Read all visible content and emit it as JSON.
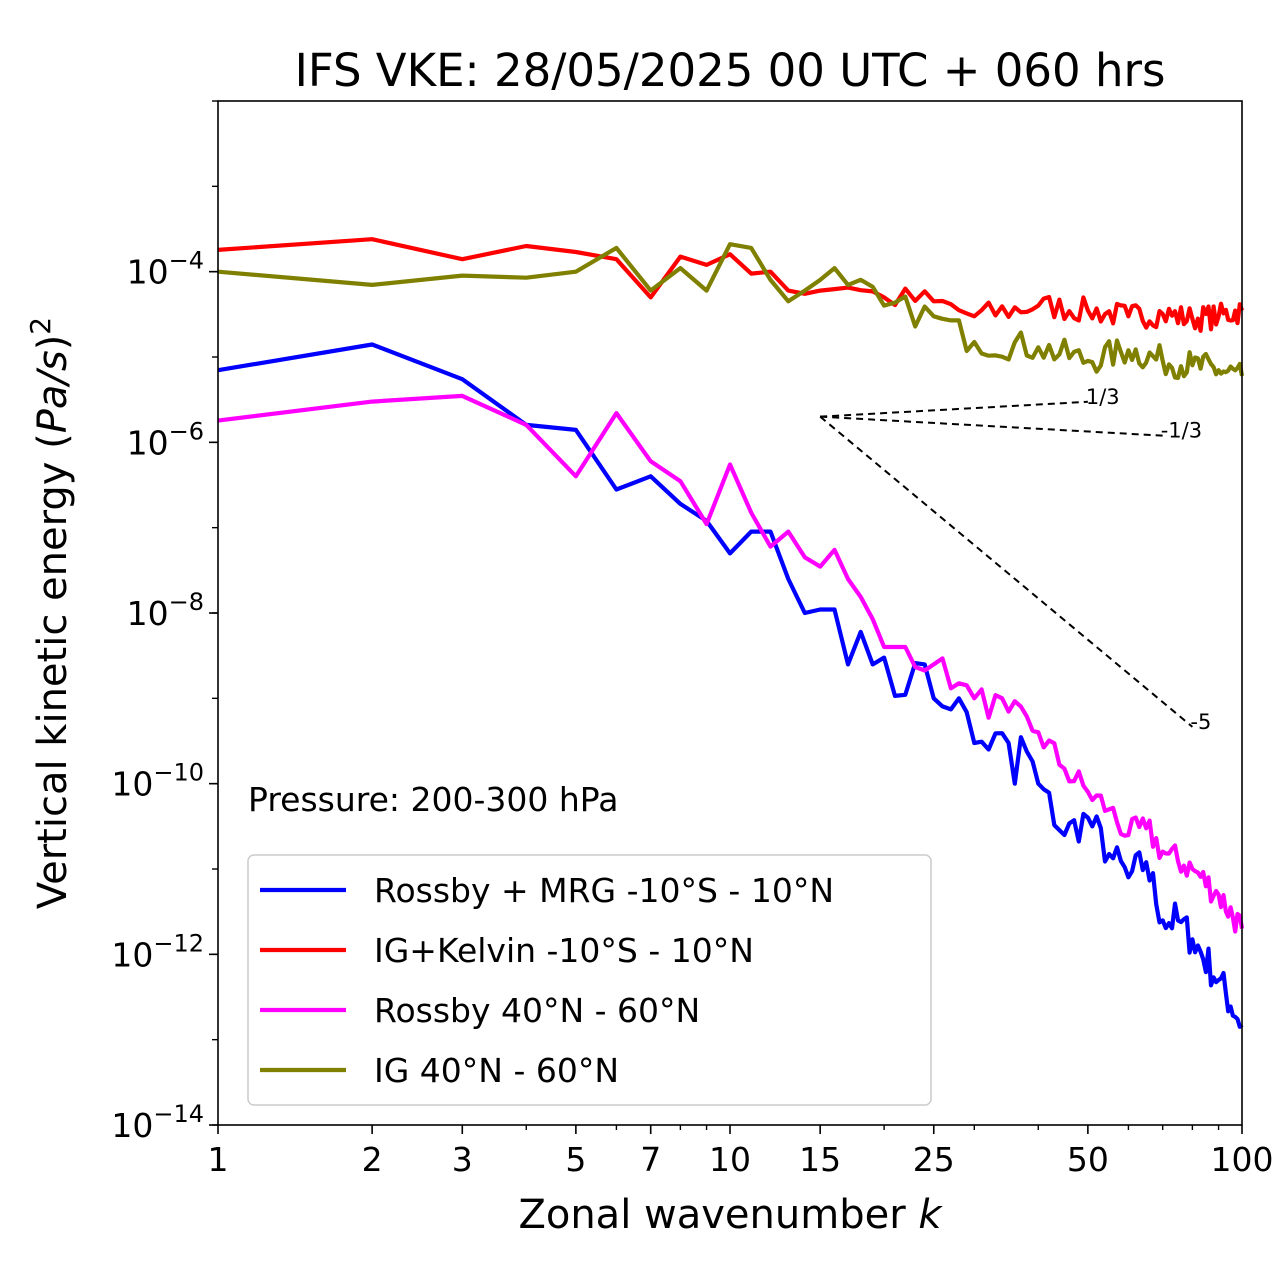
{
  "chart_data": {
    "type": "line",
    "title": "IFS VKE: 28/05/2025 00 UTC + 060 hrs",
    "xlabel": "Zonal wavenumber k",
    "xlabel_main": "Zonal wavenumber ",
    "xlabel_var": "k",
    "ylabel": "Vertical kinetic energy (Pa/s)^2",
    "ylabel_main": "Vertical kinetic energy (",
    "ylabel_var": "Pa/s",
    "ylabel_close": ")",
    "ylabel_exp": "2",
    "x_scale": "log",
    "y_scale": "log",
    "xlim": [
      1,
      100
    ],
    "ylim": [
      1e-14,
      0.01
    ],
    "x_ticks": [
      1,
      2,
      3,
      5,
      7,
      10,
      15,
      25,
      50,
      100
    ],
    "x_tick_labels": [
      "1",
      "2",
      "3",
      "5",
      "7",
      "10",
      "15",
      "25",
      "50",
      "100"
    ],
    "y_ticks": [
      -14,
      -12,
      -10,
      -8,
      -6,
      -4
    ],
    "y_tick_labels": [
      {
        "base": "10",
        "exp": "−14"
      },
      {
        "base": "10",
        "exp": "−12"
      },
      {
        "base": "10",
        "exp": "−10"
      },
      {
        "base": "10",
        "exp": "−8"
      },
      {
        "base": "10",
        "exp": "−6"
      },
      {
        "base": "10",
        "exp": "−4"
      }
    ],
    "annotation": "Pressure: 200-300 hPa",
    "legend_position": "lower-left",
    "grid": false,
    "reference_lines": [
      {
        "label": "1/3",
        "slope": 0.3333,
        "x0": 15,
        "y0": 2e-06,
        "x1": 50,
        "color": "#000000"
      },
      {
        "label": "-1/3",
        "slope": -0.3333,
        "x0": 15,
        "y0": 2e-06,
        "x1": 70,
        "color": "#000000"
      },
      {
        "label": "-5",
        "slope": -5,
        "x0": 15,
        "y0": 2e-06,
        "x1": 80,
        "color": "#000000"
      }
    ],
    "series": [
      {
        "name": "Rossby + MRG -10°S - 10°N",
        "color": "#0000ff",
        "anchors": [
          [
            1,
            7e-06
          ],
          [
            2,
            1.4e-05
          ],
          [
            3,
            5.5e-06
          ],
          [
            4,
            1.6e-06
          ],
          [
            5,
            1.4e-06
          ],
          [
            6,
            2.8e-07
          ],
          [
            7,
            4e-07
          ],
          [
            8,
            1.9e-07
          ],
          [
            9,
            1.2e-07
          ],
          [
            10,
            5e-08
          ],
          [
            11,
            9e-08
          ],
          [
            12,
            9e-08
          ],
          [
            13,
            2.5e-08
          ],
          [
            14,
            1e-08
          ],
          [
            15,
            1.1e-08
          ],
          [
            16,
            1.1e-08
          ],
          [
            17,
            2.5e-09
          ],
          [
            18,
            6e-09
          ],
          [
            19,
            2.5e-09
          ],
          [
            20,
            3e-09
          ],
          [
            22,
            1.1e-09
          ],
          [
            24,
            2.5e-09
          ],
          [
            25,
            1e-09
          ],
          [
            28,
            1e-09
          ],
          [
            30,
            3e-10
          ],
          [
            35,
            3e-10
          ],
          [
            36,
            1e-10
          ],
          [
            37,
            3.5e-10
          ],
          [
            40,
            1e-10
          ],
          [
            45,
            2.5e-11
          ],
          [
            50,
            4e-11
          ],
          [
            55,
            1.5e-11
          ],
          [
            60,
            8e-12
          ],
          [
            65,
            1.2e-11
          ],
          [
            70,
            2.5e-12
          ],
          [
            75,
            2.5e-12
          ],
          [
            80,
            1.5e-12
          ],
          [
            90,
            5e-13
          ],
          [
            100,
            1.5e-13
          ]
        ]
      },
      {
        "name": "IG+Kelvin -10°S - 10°N",
        "color": "#ff0000",
        "anchors": [
          [
            1,
            0.00018
          ],
          [
            2,
            0.00024
          ],
          [
            3,
            0.00014
          ],
          [
            4,
            0.0002
          ],
          [
            5,
            0.00017
          ],
          [
            6,
            0.00014
          ],
          [
            7,
            5e-05
          ],
          [
            8,
            0.00015
          ],
          [
            9,
            0.00012
          ],
          [
            10,
            0.00016
          ],
          [
            11,
            9.5e-05
          ],
          [
            12,
            0.0001
          ],
          [
            13,
            6e-05
          ],
          [
            14,
            5.5e-05
          ],
          [
            15,
            6e-05
          ],
          [
            17,
            6.5e-05
          ],
          [
            20,
            5e-05
          ],
          [
            25,
            4.5e-05
          ],
          [
            30,
            3e-05
          ],
          [
            40,
            4e-05
          ],
          [
            50,
            3.5e-05
          ],
          [
            60,
            3e-05
          ],
          [
            70,
            3.2e-05
          ],
          [
            80,
            2.8e-05
          ],
          [
            90,
            3e-05
          ],
          [
            100,
            3.5e-05
          ]
        ]
      },
      {
        "name": "Rossby 40°N - 60°N",
        "color": "#ff00ff",
        "anchors": [
          [
            1,
            1.8e-06
          ],
          [
            2,
            3e-06
          ],
          [
            3,
            3.5e-06
          ],
          [
            4,
            1.6e-06
          ],
          [
            5,
            4e-07
          ],
          [
            6,
            2.2e-06
          ],
          [
            7,
            6e-07
          ],
          [
            8,
            3.5e-07
          ],
          [
            9,
            1.1e-07
          ],
          [
            10,
            5.5e-07
          ],
          [
            11,
            1.5e-07
          ],
          [
            12,
            6e-08
          ],
          [
            13,
            9e-08
          ],
          [
            14,
            4.5e-08
          ],
          [
            15,
            3.5e-08
          ],
          [
            16,
            5.5e-08
          ],
          [
            17,
            2.5e-08
          ],
          [
            20,
            4e-09
          ],
          [
            22,
            4e-09
          ],
          [
            25,
            2.5e-09
          ],
          [
            28,
            1.5e-09
          ],
          [
            30,
            1e-09
          ],
          [
            35,
            7e-10
          ],
          [
            40,
            4e-10
          ],
          [
            45,
            1.5e-10
          ],
          [
            50,
            8e-11
          ],
          [
            55,
            5e-11
          ],
          [
            60,
            2.5e-11
          ],
          [
            65,
            3e-11
          ],
          [
            70,
            1.6e-11
          ],
          [
            80,
            1e-11
          ],
          [
            90,
            5e-12
          ],
          [
            100,
            2e-12
          ]
        ]
      },
      {
        "name": "IG 40°N - 60°N",
        "color": "#808000",
        "anchors": [
          [
            1,
            0.0001
          ],
          [
            2,
            7e-05
          ],
          [
            3,
            9e-05
          ],
          [
            4,
            8.5e-05
          ],
          [
            5,
            0.0001
          ],
          [
            6,
            0.00019
          ],
          [
            7,
            6e-05
          ],
          [
            8,
            0.00011
          ],
          [
            9,
            6e-05
          ],
          [
            10,
            0.00021
          ],
          [
            11,
            0.00019
          ],
          [
            12,
            8e-05
          ],
          [
            13,
            4.5e-05
          ],
          [
            14,
            6e-05
          ],
          [
            15,
            8e-05
          ],
          [
            16,
            0.00011
          ],
          [
            17,
            7e-05
          ],
          [
            20,
            4e-05
          ],
          [
            25,
            3e-05
          ],
          [
            30,
            1.5e-05
          ],
          [
            40,
            1.3e-05
          ],
          [
            50,
            9e-06
          ],
          [
            60,
            1.2e-05
          ],
          [
            70,
            9e-06
          ],
          [
            80,
            8e-06
          ],
          [
            90,
            7e-06
          ],
          [
            100,
            6e-06
          ]
        ]
      }
    ]
  }
}
